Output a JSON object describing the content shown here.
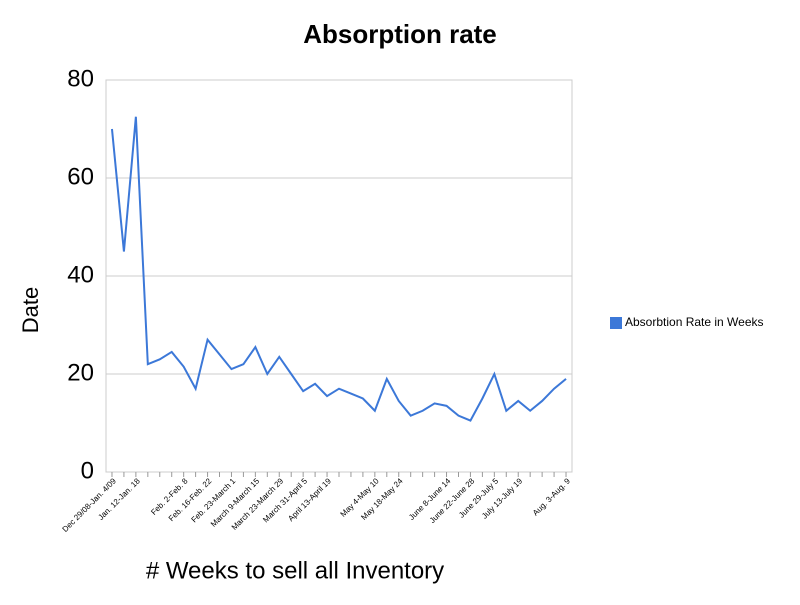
{
  "chart_data": {
    "type": "line",
    "title": "Absorption rate",
    "x_label": "# Weeks to sell all Inventory",
    "y_label": "Date",
    "categories": [
      "Dec 29/08-Jan. 4/09",
      null,
      "Jan. 12-Jan. 18",
      null,
      null,
      null,
      "Feb. 2-Feb. 8",
      null,
      "Feb. 16-Feb. 22",
      null,
      "Feb. 23-March 1",
      null,
      "March 9-March 15",
      null,
      "March 23-March 29",
      null,
      "March 31-April 5",
      null,
      "April 13-April 19",
      null,
      null,
      null,
      "May 4-May 10",
      null,
      "May 18-May 24",
      null,
      null,
      null,
      "June 8-June 14",
      null,
      "June 22-June 28",
      null,
      "June 29-July 5",
      null,
      "July 13-July 19",
      null,
      null,
      null,
      "Aug. 3-Aug. 9"
    ],
    "series": [
      {
        "name": "Absorbtion Rate in Weeks",
        "color": "#3c78d8",
        "values": [
          70,
          45,
          72.5,
          22,
          23,
          24.5,
          21.5,
          17,
          27,
          24,
          21,
          22,
          25.5,
          20,
          23.5,
          20,
          16.5,
          18,
          15.5,
          17,
          16,
          15,
          12.5,
          19,
          14.5,
          11.5,
          12.5,
          14,
          13.5,
          11.5,
          10.5,
          15,
          20,
          12.5,
          14.5,
          12.5,
          14.5,
          17,
          19
        ]
      }
    ],
    "ylim": [
      0,
      80
    ],
    "yticks": [
      0,
      20,
      40,
      60,
      80
    ],
    "grid": true,
    "legend": "right"
  }
}
